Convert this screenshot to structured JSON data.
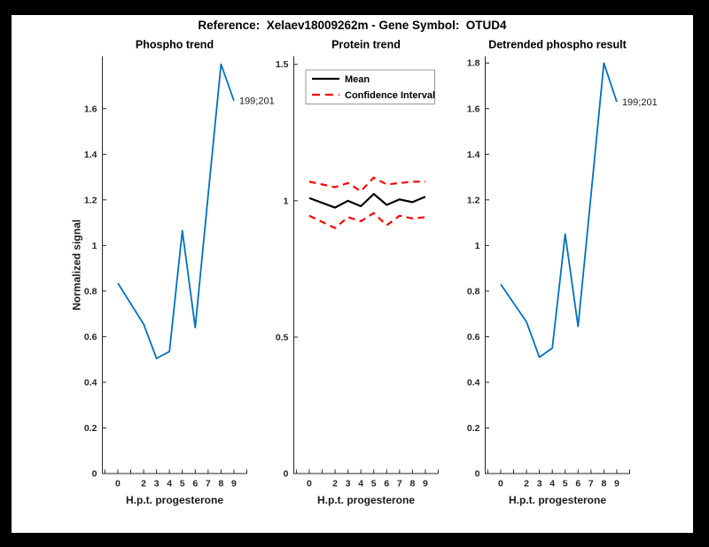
{
  "header": {
    "title": "Reference:  Xelaev18009262m - Gene Symbol:  OTUD4"
  },
  "colors": {
    "line_blue": "#0072BD",
    "line_black": "#000000",
    "line_red": "#ff0000",
    "axis": "#262626",
    "figure_bg": "#ffffff",
    "frame_bg": "#000000",
    "legend_border": "#999999"
  },
  "chart_data": [
    {
      "type": "line",
      "title": "Phospho trend",
      "xlabel": "H.p.t. progesterone",
      "ylabel": "Normalized signal",
      "x": [
        0,
        2,
        3,
        4,
        5,
        6,
        7,
        8,
        9
      ],
      "xlim": [
        -1.2,
        10
      ],
      "ylim": [
        0,
        1.83
      ],
      "xticks": [
        -1,
        0,
        1,
        2,
        3,
        4,
        5,
        6,
        7,
        8,
        9,
        10
      ],
      "xtick_labels": [
        "",
        "0",
        "",
        "2",
        "3",
        "4",
        "5",
        "6",
        "7",
        "8",
        "9",
        ""
      ],
      "yticks": [
        0,
        0.2,
        0.4,
        0.6,
        0.8,
        1,
        1.2,
        1.4,
        1.6
      ],
      "ytick_labels": [
        "0",
        "0.2",
        "0.4",
        "0.6",
        "0.8",
        "1",
        "1.2",
        "1.4",
        "1.6"
      ],
      "grid": false,
      "series": [
        {
          "name": "phospho-signal",
          "color": "#0072BD",
          "width": 1.8,
          "dash": null,
          "values": [
            0.835,
            0.655,
            0.505,
            0.535,
            1.065,
            0.64,
            1.22,
            1.795,
            1.635
          ]
        }
      ],
      "annotation": {
        "text": "199;201",
        "x": 9,
        "y": 1.635
      },
      "legend": null
    },
    {
      "type": "line",
      "title": "Protein trend",
      "xlabel": "H.p.t. progesterone",
      "ylabel": null,
      "x": [
        0,
        2,
        3,
        4,
        5,
        6,
        7,
        8,
        9
      ],
      "xlim": [
        -1.2,
        10
      ],
      "ylim": [
        0,
        1.53
      ],
      "xticks": [
        -1,
        0,
        1,
        2,
        3,
        4,
        5,
        6,
        7,
        8,
        9,
        10
      ],
      "xtick_labels": [
        "",
        "0",
        "",
        "2",
        "3",
        "4",
        "5",
        "6",
        "7",
        "8",
        "9",
        ""
      ],
      "yticks": [
        0,
        0.5,
        1,
        1.5
      ],
      "ytick_labels": [
        "0",
        "0.5",
        "1",
        "1.5"
      ],
      "grid": false,
      "series": [
        {
          "name": "mean",
          "color": "#000000",
          "width": 2.2,
          "dash": null,
          "values": [
            1.01,
            0.975,
            1.0,
            0.98,
            1.025,
            0.985,
            1.005,
            0.995,
            1.015
          ]
        },
        {
          "name": "ci-upper",
          "color": "#ff0000",
          "width": 2.2,
          "dash": [
            7.5,
            5.5
          ],
          "values": [
            1.07,
            1.05,
            1.065,
            1.035,
            1.085,
            1.06,
            1.065,
            1.07,
            1.07
          ]
        },
        {
          "name": "ci-lower",
          "color": "#ff0000",
          "width": 2.2,
          "dash": [
            7.5,
            5.5
          ],
          "values": [
            0.945,
            0.9,
            0.94,
            0.925,
            0.955,
            0.91,
            0.945,
            0.935,
            0.94
          ]
        }
      ],
      "annotation": null,
      "legend": {
        "entries": [
          {
            "label": "Mean",
            "color": "#000000",
            "dash": null
          },
          {
            "label": "Confidence Interval",
            "color": "#ff0000",
            "dash": [
              9,
              6
            ]
          }
        ]
      }
    },
    {
      "type": "line",
      "title": "Detrended phospho result",
      "xlabel": "H.p.t. progesterone",
      "ylabel": null,
      "x": [
        0,
        2,
        3,
        4,
        5,
        6,
        7,
        8,
        9
      ],
      "xlim": [
        -1.2,
        10
      ],
      "ylim": [
        0,
        1.83
      ],
      "xticks": [
        -1,
        0,
        1,
        2,
        3,
        4,
        5,
        6,
        7,
        8,
        9,
        10
      ],
      "xtick_labels": [
        "",
        "0",
        "",
        "2",
        "3",
        "4",
        "5",
        "6",
        "7",
        "8",
        "9",
        ""
      ],
      "yticks": [
        0,
        0.2,
        0.4,
        0.6,
        0.8,
        1,
        1.2,
        1.4,
        1.6,
        1.8
      ],
      "ytick_labels": [
        "0",
        "0.2",
        "0.4",
        "0.6",
        "0.8",
        "1",
        "1.2",
        "1.4",
        "1.6",
        "1.8"
      ],
      "grid": false,
      "series": [
        {
          "name": "detrended-phospho",
          "color": "#0072BD",
          "width": 1.8,
          "dash": null,
          "values": [
            0.83,
            0.665,
            0.51,
            0.55,
            1.05,
            0.645,
            1.22,
            1.8,
            1.63
          ]
        }
      ],
      "annotation": {
        "text": "199;201",
        "x": 9,
        "y": 1.63
      },
      "legend": null
    }
  ]
}
